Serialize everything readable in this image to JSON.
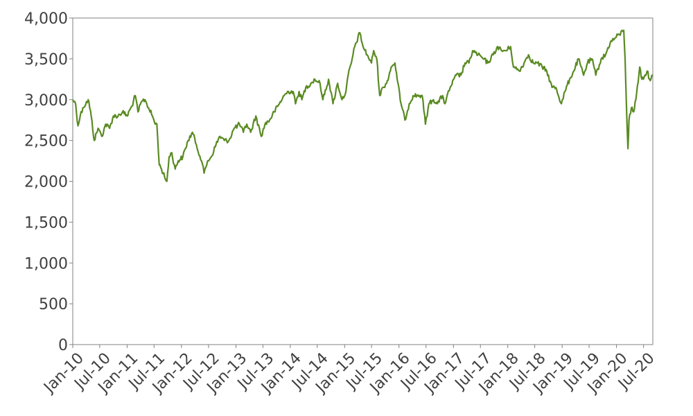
{
  "chart_data": {
    "type": "line",
    "title": "",
    "xlabel": "",
    "ylabel": "",
    "x_range": [
      "2010-01-01",
      "2020-09-01"
    ],
    "ylim": [
      0,
      4000
    ],
    "y_ticks": [
      {
        "value": 0,
        "label": "0"
      },
      {
        "value": 500,
        "label": "500"
      },
      {
        "value": 1000,
        "label": "1,000"
      },
      {
        "value": 1500,
        "label": "1,500"
      },
      {
        "value": 2000,
        "label": "2,000"
      },
      {
        "value": 2500,
        "label": "2,500"
      },
      {
        "value": 3000,
        "label": "3,000"
      },
      {
        "value": 3500,
        "label": "3,500"
      },
      {
        "value": 4000,
        "label": "4,000"
      }
    ],
    "x_ticks": [
      {
        "date": "2010-01-01",
        "label": "Jan-10"
      },
      {
        "date": "2010-07-01",
        "label": "Jul-10"
      },
      {
        "date": "2011-01-01",
        "label": "Jan-11"
      },
      {
        "date": "2011-07-01",
        "label": "Jul-11"
      },
      {
        "date": "2012-01-01",
        "label": "Jan-12"
      },
      {
        "date": "2012-07-01",
        "label": "Jul-12"
      },
      {
        "date": "2013-01-01",
        "label": "Jan-13"
      },
      {
        "date": "2013-07-01",
        "label": "Jul-13"
      },
      {
        "date": "2014-01-01",
        "label": "Jan-14"
      },
      {
        "date": "2014-07-01",
        "label": "Jul-14"
      },
      {
        "date": "2015-01-01",
        "label": "Jan-15"
      },
      {
        "date": "2015-07-01",
        "label": "Jul-15"
      },
      {
        "date": "2016-01-01",
        "label": "Jan-16"
      },
      {
        "date": "2016-07-01",
        "label": "Jul-16"
      },
      {
        "date": "2017-01-01",
        "label": "Jan-17"
      },
      {
        "date": "2017-07-01",
        "label": "Jul-17"
      },
      {
        "date": "2018-01-01",
        "label": "Jan-18"
      },
      {
        "date": "2018-07-01",
        "label": "Jul-18"
      },
      {
        "date": "2019-01-01",
        "label": "Jan-19"
      },
      {
        "date": "2019-07-01",
        "label": "Jul-19"
      },
      {
        "date": "2020-01-01",
        "label": "Jan-20"
      },
      {
        "date": "2020-07-01",
        "label": "Jul-20"
      }
    ],
    "grid": false,
    "line_color": "#5a8a22",
    "series": [
      {
        "points": [
          [
            "2010-01-01",
            3000
          ],
          [
            "2010-01-20",
            2950
          ],
          [
            "2010-02-05",
            2680
          ],
          [
            "2010-02-20",
            2800
          ],
          [
            "2010-03-10",
            2900
          ],
          [
            "2010-04-15",
            3000
          ],
          [
            "2010-05-05",
            2800
          ],
          [
            "2010-05-25",
            2500
          ],
          [
            "2010-06-20",
            2650
          ],
          [
            "2010-07-15",
            2550
          ],
          [
            "2010-08-10",
            2700
          ],
          [
            "2010-09-05",
            2650
          ],
          [
            "2010-10-01",
            2800
          ],
          [
            "2010-11-01",
            2800
          ],
          [
            "2010-12-01",
            2850
          ],
          [
            "2011-01-01",
            2800
          ],
          [
            "2011-02-01",
            2920
          ],
          [
            "2011-02-25",
            3050
          ],
          [
            "2011-03-15",
            2850
          ],
          [
            "2011-04-10",
            2980
          ],
          [
            "2011-05-01",
            3000
          ],
          [
            "2011-05-25",
            2900
          ],
          [
            "2011-06-20",
            2800
          ],
          [
            "2011-07-10",
            2700
          ],
          [
            "2011-07-20",
            2700
          ],
          [
            "2011-08-05",
            2200
          ],
          [
            "2011-08-20",
            2150
          ],
          [
            "2011-09-10",
            2050
          ],
          [
            "2011-09-25",
            2000
          ],
          [
            "2011-10-10",
            2300
          ],
          [
            "2011-10-28",
            2350
          ],
          [
            "2011-11-20",
            2150
          ],
          [
            "2011-12-10",
            2250
          ],
          [
            "2012-01-10",
            2300
          ],
          [
            "2012-02-15",
            2500
          ],
          [
            "2012-03-15",
            2600
          ],
          [
            "2012-04-10",
            2450
          ],
          [
            "2012-05-15",
            2250
          ],
          [
            "2012-06-01",
            2100
          ],
          [
            "2012-06-25",
            2250
          ],
          [
            "2012-07-20",
            2300
          ],
          [
            "2012-08-20",
            2450
          ],
          [
            "2012-09-15",
            2550
          ],
          [
            "2012-10-15",
            2500
          ],
          [
            "2012-11-15",
            2500
          ],
          [
            "2012-12-20",
            2650
          ],
          [
            "2013-01-25",
            2700
          ],
          [
            "2013-02-20",
            2600
          ],
          [
            "2013-03-15",
            2700
          ],
          [
            "2013-04-10",
            2600
          ],
          [
            "2013-05-15",
            2800
          ],
          [
            "2013-06-20",
            2550
          ],
          [
            "2013-07-15",
            2700
          ],
          [
            "2013-08-15",
            2750
          ],
          [
            "2013-09-15",
            2850
          ],
          [
            "2013-10-20",
            2950
          ],
          [
            "2013-11-20",
            3050
          ],
          [
            "2013-12-20",
            3100
          ],
          [
            "2014-01-20",
            3100
          ],
          [
            "2014-02-05",
            2950
          ],
          [
            "2014-03-01",
            3100
          ],
          [
            "2014-03-20",
            3000
          ],
          [
            "2014-04-15",
            3150
          ],
          [
            "2014-05-20",
            3200
          ],
          [
            "2014-06-15",
            3250
          ],
          [
            "2014-07-20",
            3200
          ],
          [
            "2014-08-08",
            3000
          ],
          [
            "2014-09-15",
            3250
          ],
          [
            "2014-10-15",
            2950
          ],
          [
            "2014-11-15",
            3200
          ],
          [
            "2014-12-15",
            3000
          ],
          [
            "2015-01-10",
            3100
          ],
          [
            "2015-01-25",
            3300
          ],
          [
            "2015-02-15",
            3450
          ],
          [
            "2015-03-10",
            3650
          ],
          [
            "2015-04-13",
            3820
          ],
          [
            "2015-05-05",
            3650
          ],
          [
            "2015-06-01",
            3550
          ],
          [
            "2015-06-30",
            3450
          ],
          [
            "2015-07-15",
            3600
          ],
          [
            "2015-08-05",
            3500
          ],
          [
            "2015-08-25",
            3050
          ],
          [
            "2015-09-15",
            3150
          ],
          [
            "2015-10-10",
            3200
          ],
          [
            "2015-11-10",
            3400
          ],
          [
            "2015-12-05",
            3450
          ],
          [
            "2015-12-20",
            3250
          ],
          [
            "2016-01-15",
            2950
          ],
          [
            "2016-02-10",
            2750
          ],
          [
            "2016-03-10",
            2950
          ],
          [
            "2016-04-05",
            3050
          ],
          [
            "2016-05-01",
            3050
          ],
          [
            "2016-06-05",
            3050
          ],
          [
            "2016-06-27",
            2700
          ],
          [
            "2016-07-20",
            2950
          ],
          [
            "2016-08-20",
            3000
          ],
          [
            "2016-09-15",
            2950
          ],
          [
            "2016-10-20",
            3050
          ],
          [
            "2016-11-05",
            2950
          ],
          [
            "2016-12-10",
            3150
          ],
          [
            "2017-01-20",
            3300
          ],
          [
            "2017-02-20",
            3300
          ],
          [
            "2017-03-20",
            3450
          ],
          [
            "2017-04-15",
            3450
          ],
          [
            "2017-05-10",
            3600
          ],
          [
            "2017-06-15",
            3550
          ],
          [
            "2017-07-20",
            3500
          ],
          [
            "2017-08-20",
            3450
          ],
          [
            "2017-09-25",
            3550
          ],
          [
            "2017-10-25",
            3650
          ],
          [
            "2017-11-20",
            3600
          ],
          [
            "2017-12-20",
            3600
          ],
          [
            "2018-01-20",
            3650
          ],
          [
            "2018-02-08",
            3400
          ],
          [
            "2018-03-20",
            3350
          ],
          [
            "2018-04-20",
            3450
          ],
          [
            "2018-05-20",
            3550
          ],
          [
            "2018-06-20",
            3450
          ],
          [
            "2018-07-20",
            3450
          ],
          [
            "2018-08-20",
            3400
          ],
          [
            "2018-09-20",
            3350
          ],
          [
            "2018-10-25",
            3150
          ],
          [
            "2018-11-20",
            3150
          ],
          [
            "2018-12-27",
            2950
          ],
          [
            "2019-01-20",
            3100
          ],
          [
            "2019-02-20",
            3250
          ],
          [
            "2019-03-20",
            3350
          ],
          [
            "2019-04-20",
            3500
          ],
          [
            "2019-05-25",
            3300
          ],
          [
            "2019-06-20",
            3450
          ],
          [
            "2019-07-20",
            3500
          ],
          [
            "2019-08-15",
            3300
          ],
          [
            "2019-09-20",
            3500
          ],
          [
            "2019-10-20",
            3550
          ],
          [
            "2019-11-20",
            3700
          ],
          [
            "2019-12-20",
            3750
          ],
          [
            "2020-01-20",
            3800
          ],
          [
            "2020-02-19",
            3850
          ],
          [
            "2020-02-28",
            3500
          ],
          [
            "2020-03-12",
            2700
          ],
          [
            "2020-03-18",
            2400
          ],
          [
            "2020-03-25",
            2750
          ],
          [
            "2020-04-10",
            2900
          ],
          [
            "2020-04-25",
            2850
          ],
          [
            "2020-05-10",
            3000
          ],
          [
            "2020-06-05",
            3400
          ],
          [
            "2020-06-20",
            3250
          ],
          [
            "2020-07-10",
            3300
          ],
          [
            "2020-07-25",
            3350
          ],
          [
            "2020-08-10",
            3250
          ],
          [
            "2020-08-31",
            3300
          ]
        ]
      }
    ]
  }
}
